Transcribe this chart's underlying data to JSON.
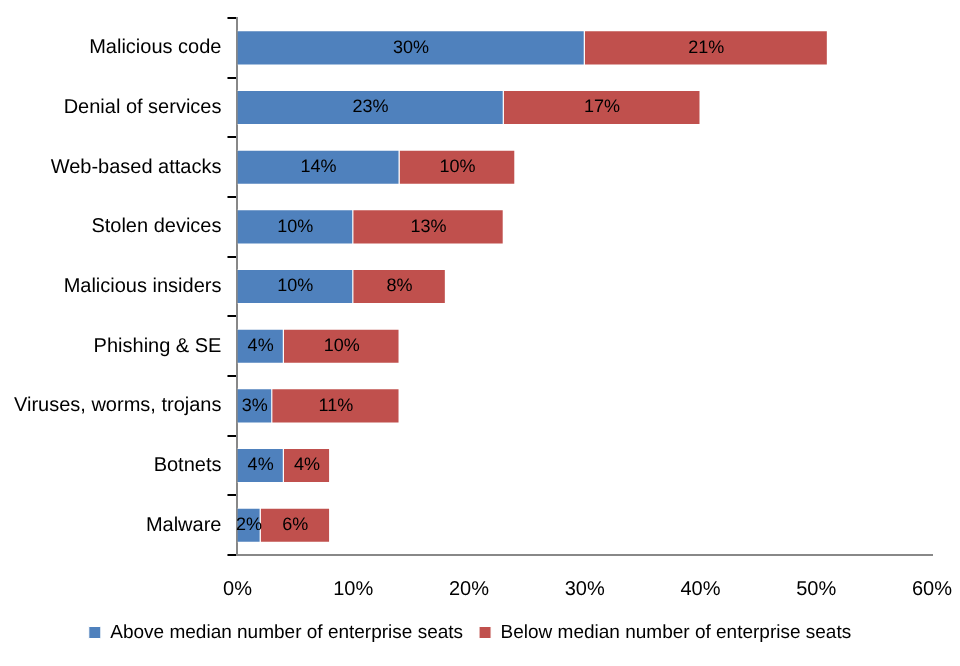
{
  "chart_data": {
    "type": "bar",
    "orientation": "horizontal",
    "stacked": true,
    "categories": [
      "Malicious code",
      "Denial of services",
      "Web-based attacks",
      "Stolen devices",
      "Malicious insiders",
      "Phishing & SE",
      "Viruses, worms, trojans",
      "Botnets",
      "Malware"
    ],
    "series": [
      {
        "name": "Above median number of enterprise seats",
        "color": "#4f81bd",
        "values": [
          30,
          23,
          14,
          10,
          10,
          4,
          3,
          4,
          2
        ],
        "value_labels": [
          "30%",
          "23%",
          "14%",
          "10%",
          "10%",
          "4%",
          "3%",
          "4%",
          "2%"
        ]
      },
      {
        "name": "Below median number of enterprise seats",
        "color": "#c0504d",
        "values": [
          21,
          17,
          10,
          13,
          8,
          10,
          11,
          4,
          6
        ],
        "value_labels": [
          "21%",
          "17%",
          "10%",
          "13%",
          "8%",
          "10%",
          "11%",
          "4%",
          "6%"
        ]
      }
    ],
    "xlim": [
      0,
      60
    ],
    "xticks": [
      {
        "value": 0,
        "label": "0%"
      },
      {
        "value": 10,
        "label": "10%"
      },
      {
        "value": 20,
        "label": "20%"
      },
      {
        "value": 30,
        "label": "30%"
      },
      {
        "value": 40,
        "label": "40%"
      },
      {
        "value": 50,
        "label": "50%"
      },
      {
        "value": 60,
        "label": "60%"
      }
    ],
    "grid": false,
    "legend": "bottom"
  }
}
